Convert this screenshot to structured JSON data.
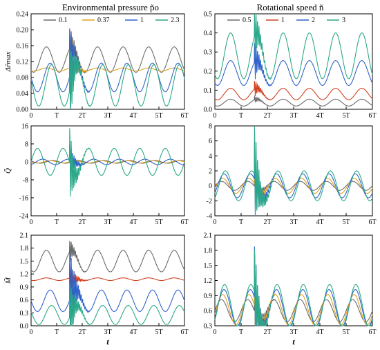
{
  "columns": {
    "left_title": "Environmental pressure p̃o",
    "right_title": "Rotational speed ñ"
  },
  "colors": {
    "gray": "#6b6b6b",
    "orange": "#e0a020",
    "blue": "#2f62c8",
    "green": "#2aa889",
    "red": "#d04020"
  },
  "x_axis": {
    "ticks": [
      "0",
      "T",
      "2T",
      "3T",
      "4T",
      "5T",
      "6T"
    ],
    "label": "t"
  },
  "chart_data": [
    {
      "type": "line",
      "id": "left-top",
      "ylabel": "Δr̃max",
      "ylim": [
        0.0,
        0.24
      ],
      "yticks": [
        "0.00",
        "0.04",
        "0.08",
        "0.12",
        "0.16",
        "0.20",
        "0.24"
      ],
      "xlim": [
        0,
        6
      ],
      "legend": "top",
      "series": [
        {
          "name": "0.1",
          "color": "gray",
          "baseline": 0.125,
          "amp": 0.032,
          "phase": 0.35,
          "spike": 0.06,
          "pre_offset": 0.0
        },
        {
          "name": "0.37",
          "color": "orange",
          "baseline": 0.1,
          "amp": 0.004,
          "phase": 0.35,
          "spike": 0.07,
          "pre_offset": 0.0
        },
        {
          "name": "1",
          "color": "blue",
          "baseline": 0.08,
          "amp": 0.036,
          "phase": 0.5,
          "spike": 0.14,
          "pre_offset": 0.0
        },
        {
          "name": "2.3",
          "color": "green",
          "baseline": 0.06,
          "amp": 0.052,
          "phase": 0.55,
          "spike": 0.12,
          "pre_offset": 0.0
        }
      ]
    },
    {
      "type": "line",
      "id": "right-top",
      "ylabel": "",
      "ylim": [
        0.0,
        0.5
      ],
      "yticks": [
        "0.0",
        "0.1",
        "0.2",
        "0.3",
        "0.4",
        "0.5"
      ],
      "xlim": [
        0,
        6
      ],
      "legend": "top",
      "series": [
        {
          "name": "0.5",
          "color": "gray",
          "baseline": 0.035,
          "amp": 0.018,
          "phase": 0.35,
          "spike": 0.02,
          "pre_offset": 0.0
        },
        {
          "name": "1",
          "color": "red",
          "baseline": 0.08,
          "amp": 0.03,
          "phase": 0.35,
          "spike": 0.05,
          "pre_offset": 0.0
        },
        {
          "name": "2",
          "color": "blue",
          "baseline": 0.19,
          "amp": 0.065,
          "phase": 0.35,
          "spike": 0.12,
          "pre_offset": 0.0
        },
        {
          "name": "3",
          "color": "green",
          "baseline": 0.28,
          "amp": 0.12,
          "phase": 0.35,
          "spike": 0.15,
          "pre_offset": 0.0
        }
      ]
    },
    {
      "type": "line",
      "id": "left-mid",
      "ylabel": "Q̃",
      "ylim": [
        -24,
        16
      ],
      "yticks": [
        "-24",
        "-16",
        "-8",
        "0",
        "8",
        "16"
      ],
      "xlim": [
        0,
        6
      ],
      "legend": "none",
      "series": [
        {
          "name": "0.1",
          "color": "gray",
          "baseline": 0.0,
          "amp": 0.6,
          "phase": 0.6,
          "spike": 1.5,
          "pre_offset": 0.0
        },
        {
          "name": "0.37",
          "color": "orange",
          "baseline": 0.0,
          "amp": 0.5,
          "phase": 0.5,
          "spike": 2.0,
          "pre_offset": 0.0
        },
        {
          "name": "1",
          "color": "blue",
          "baseline": 0.0,
          "amp": 1.2,
          "phase": 0.2,
          "spike": 8.0,
          "pre_offset": 0.0
        },
        {
          "name": "2.3",
          "color": "green",
          "baseline": 0.0,
          "amp": 6.0,
          "phase": 0.0,
          "spike": 18.0,
          "pre_offset": 0.0
        }
      ]
    },
    {
      "type": "line",
      "id": "right-mid",
      "ylabel": "",
      "ylim": [
        -4,
        8
      ],
      "yticks": [
        "-4",
        "-2",
        "0",
        "2",
        "4",
        "6",
        "8"
      ],
      "xlim": [
        0,
        6
      ],
      "legend": "none",
      "series": [
        {
          "name": "0.5",
          "color": "gray",
          "baseline": 0.0,
          "amp": 0.6,
          "phase": 0.0,
          "spike": 2.0,
          "pre_offset": 0.0
        },
        {
          "name": "1",
          "color": "orange",
          "baseline": 0.0,
          "amp": 1.0,
          "phase": 0.05,
          "spike": 3.0,
          "pre_offset": 0.0
        },
        {
          "name": "2",
          "color": "blue",
          "baseline": 0.0,
          "amp": 1.6,
          "phase": 0.1,
          "spike": 6.0,
          "pre_offset": 0.0
        },
        {
          "name": "3",
          "color": "green",
          "baseline": 0.0,
          "amp": 2.0,
          "phase": 0.15,
          "spike": 7.5,
          "pre_offset": 0.0
        }
      ]
    },
    {
      "type": "line",
      "id": "left-bot",
      "ylabel": "M̃",
      "ylim": [
        0.0,
        2.1
      ],
      "yticks": [
        "0.0",
        "0.3",
        "0.6",
        "0.9",
        "1.2",
        "1.5",
        "1.8",
        "2.1"
      ],
      "xlim": [
        0,
        6
      ],
      "legend": "none",
      "series": [
        {
          "name": "0.1",
          "color": "gray",
          "baseline": 1.5,
          "amp": 0.25,
          "phase": 0.35,
          "spike": 0.3,
          "pre_offset": 0.0
        },
        {
          "name": "0.37",
          "color": "red",
          "baseline": 1.08,
          "amp": 0.03,
          "phase": 0.35,
          "spike": 0.4,
          "pre_offset": 0.0
        },
        {
          "name": "1",
          "color": "blue",
          "baseline": 0.58,
          "amp": 0.25,
          "phase": 0.5,
          "spike": 1.35,
          "pre_offset": 0.0
        },
        {
          "name": "2.3",
          "color": "green",
          "baseline": 0.25,
          "amp": 0.22,
          "phase": 0.55,
          "spike": 0.9,
          "pre_offset": 0.0
        }
      ]
    },
    {
      "type": "line",
      "id": "right-bot",
      "ylabel": "",
      "ylim": [
        0.3,
        2.1
      ],
      "yticks": [
        "0.3",
        "0.6",
        "0.9",
        "1.2",
        "1.5",
        "1.8",
        "2.1"
      ],
      "xlim": [
        0,
        6
      ],
      "legend": "none",
      "series": [
        {
          "name": "0.5",
          "color": "gray",
          "baseline": 0.6,
          "amp": 0.22,
          "phase": 0.0,
          "spike": 1.0,
          "pre_offset": 0.0
        },
        {
          "name": "1",
          "color": "orange",
          "baseline": 0.62,
          "amp": 0.3,
          "phase": 0.05,
          "spike": 1.3,
          "pre_offset": 0.0
        },
        {
          "name": "2",
          "color": "blue",
          "baseline": 0.66,
          "amp": 0.36,
          "phase": 0.1,
          "spike": 1.2,
          "pre_offset": 0.0
        },
        {
          "name": "3",
          "color": "green",
          "baseline": 0.7,
          "amp": 0.42,
          "phase": 0.12,
          "spike": 1.0,
          "pre_offset": 0.0
        }
      ]
    }
  ]
}
